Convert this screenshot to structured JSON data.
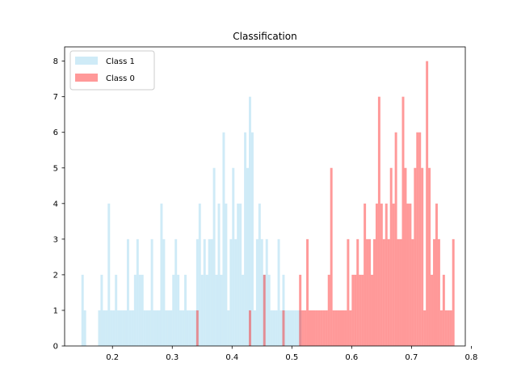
{
  "chart_data": {
    "type": "bar",
    "title": "Classification",
    "xlabel": "",
    "ylabel": "",
    "xlim": [
      0.12,
      0.79
    ],
    "ylim": [
      0,
      8.4
    ],
    "xticks": [
      "0.2",
      "0.3",
      "0.4",
      "0.5",
      "0.6",
      "0.7",
      "0.8"
    ],
    "yticks": [
      "0",
      "1",
      "2",
      "3",
      "4",
      "5",
      "6",
      "7",
      "8"
    ],
    "bin_width": 0.004,
    "legend": {
      "position": "top-left"
    },
    "series": [
      {
        "name": "Class 1",
        "color": "#87ceeb",
        "opacity": 0.4,
        "bins": [
          [
            0.148,
            2
          ],
          [
            0.152,
            1
          ],
          [
            0.176,
            1
          ],
          [
            0.18,
            2
          ],
          [
            0.184,
            1
          ],
          [
            0.188,
            1
          ],
          [
            0.192,
            4
          ],
          [
            0.196,
            1
          ],
          [
            0.2,
            1
          ],
          [
            0.204,
            2
          ],
          [
            0.208,
            1
          ],
          [
            0.212,
            1
          ],
          [
            0.216,
            1
          ],
          [
            0.22,
            1
          ],
          [
            0.224,
            3
          ],
          [
            0.228,
            1
          ],
          [
            0.232,
            1
          ],
          [
            0.236,
            2
          ],
          [
            0.24,
            3
          ],
          [
            0.244,
            2
          ],
          [
            0.248,
            2
          ],
          [
            0.252,
            1
          ],
          [
            0.256,
            1
          ],
          [
            0.26,
            1
          ],
          [
            0.264,
            3
          ],
          [
            0.268,
            1
          ],
          [
            0.272,
            1
          ],
          [
            0.276,
            1
          ],
          [
            0.28,
            4
          ],
          [
            0.284,
            3
          ],
          [
            0.288,
            1
          ],
          [
            0.292,
            1
          ],
          [
            0.296,
            1
          ],
          [
            0.3,
            2
          ],
          [
            0.304,
            3
          ],
          [
            0.308,
            2
          ],
          [
            0.312,
            1
          ],
          [
            0.316,
            1
          ],
          [
            0.32,
            2
          ],
          [
            0.324,
            1
          ],
          [
            0.328,
            1
          ],
          [
            0.332,
            1
          ],
          [
            0.336,
            1
          ],
          [
            0.34,
            3
          ],
          [
            0.344,
            4
          ],
          [
            0.348,
            2
          ],
          [
            0.352,
            3
          ],
          [
            0.356,
            2
          ],
          [
            0.36,
            3
          ],
          [
            0.364,
            3
          ],
          [
            0.368,
            5
          ],
          [
            0.372,
            2
          ],
          [
            0.376,
            4
          ],
          [
            0.38,
            2
          ],
          [
            0.384,
            6
          ],
          [
            0.388,
            4
          ],
          [
            0.392,
            1
          ],
          [
            0.396,
            3
          ],
          [
            0.4,
            5
          ],
          [
            0.404,
            3
          ],
          [
            0.408,
            4
          ],
          [
            0.412,
            4
          ],
          [
            0.416,
            2
          ],
          [
            0.42,
            6
          ],
          [
            0.424,
            5
          ],
          [
            0.428,
            7
          ],
          [
            0.432,
            6
          ],
          [
            0.436,
            1
          ],
          [
            0.44,
            3
          ],
          [
            0.444,
            4
          ],
          [
            0.448,
            3
          ],
          [
            0.452,
            2
          ],
          [
            0.456,
            3
          ],
          [
            0.46,
            2
          ],
          [
            0.464,
            1
          ],
          [
            0.468,
            1
          ],
          [
            0.472,
            1
          ],
          [
            0.476,
            3
          ],
          [
            0.48,
            1
          ],
          [
            0.484,
            2
          ],
          [
            0.488,
            1
          ],
          [
            0.492,
            1
          ],
          [
            0.496,
            1
          ],
          [
            0.5,
            1
          ],
          [
            0.504,
            1
          ],
          [
            0.508,
            1
          ],
          [
            0.512,
            1
          ]
        ]
      },
      {
        "name": "Class 0",
        "color": "#ff0000",
        "opacity": 0.4,
        "bins": [
          [
            0.34,
            1
          ],
          [
            0.428,
            1
          ],
          [
            0.452,
            2
          ],
          [
            0.484,
            1
          ],
          [
            0.512,
            2
          ],
          [
            0.516,
            1
          ],
          [
            0.52,
            1
          ],
          [
            0.524,
            3
          ],
          [
            0.528,
            1
          ],
          [
            0.532,
            1
          ],
          [
            0.536,
            1
          ],
          [
            0.54,
            1
          ],
          [
            0.544,
            1
          ],
          [
            0.548,
            1
          ],
          [
            0.552,
            1
          ],
          [
            0.556,
            1
          ],
          [
            0.56,
            2
          ],
          [
            0.564,
            5
          ],
          [
            0.568,
            1
          ],
          [
            0.572,
            1
          ],
          [
            0.576,
            1
          ],
          [
            0.58,
            1
          ],
          [
            0.584,
            1
          ],
          [
            0.588,
            1
          ],
          [
            0.592,
            3
          ],
          [
            0.596,
            1
          ],
          [
            0.6,
            2
          ],
          [
            0.604,
            2
          ],
          [
            0.608,
            3
          ],
          [
            0.612,
            2
          ],
          [
            0.616,
            2
          ],
          [
            0.62,
            4
          ],
          [
            0.624,
            3
          ],
          [
            0.628,
            3
          ],
          [
            0.632,
            2
          ],
          [
            0.636,
            3
          ],
          [
            0.64,
            4
          ],
          [
            0.644,
            7
          ],
          [
            0.648,
            4
          ],
          [
            0.652,
            3
          ],
          [
            0.656,
            4
          ],
          [
            0.66,
            3
          ],
          [
            0.664,
            5
          ],
          [
            0.668,
            4
          ],
          [
            0.672,
            6
          ],
          [
            0.676,
            3
          ],
          [
            0.68,
            3
          ],
          [
            0.684,
            7
          ],
          [
            0.688,
            5
          ],
          [
            0.692,
            4
          ],
          [
            0.696,
            4
          ],
          [
            0.7,
            3
          ],
          [
            0.704,
            5
          ],
          [
            0.708,
            6
          ],
          [
            0.712,
            6
          ],
          [
            0.716,
            5
          ],
          [
            0.72,
            1
          ],
          [
            0.724,
            8
          ],
          [
            0.728,
            5
          ],
          [
            0.732,
            2
          ],
          [
            0.736,
            3
          ],
          [
            0.74,
            4
          ],
          [
            0.744,
            3
          ],
          [
            0.748,
            1
          ],
          [
            0.752,
            2
          ],
          [
            0.756,
            1
          ],
          [
            0.76,
            1
          ],
          [
            0.764,
            1
          ],
          [
            0.768,
            3
          ]
        ]
      }
    ]
  }
}
